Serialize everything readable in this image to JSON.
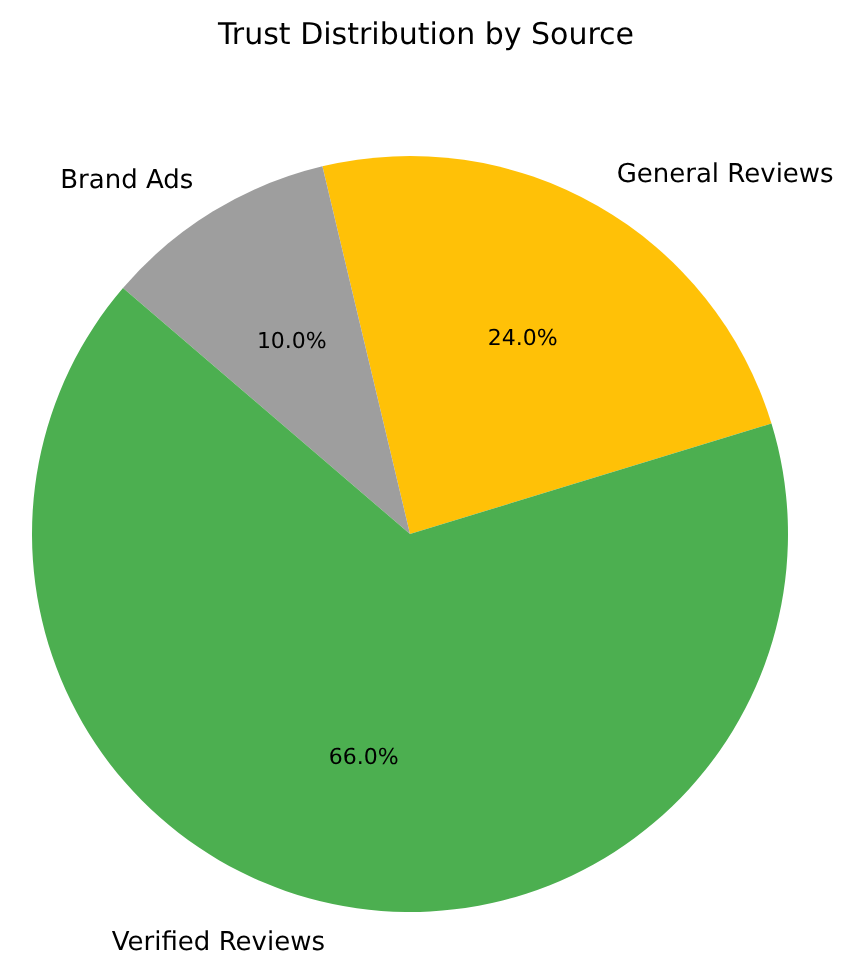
{
  "chart_data": {
    "type": "pie",
    "title": "Trust Distribution by Source",
    "categories": [
      "General Reviews",
      "Brand Ads",
      "Verified Reviews"
    ],
    "values": [
      24,
      10,
      66
    ],
    "colors": [
      "#ffc107",
      "#9e9e9e",
      "#4caf50"
    ],
    "value_labels": [
      "24.0%",
      "10.0%",
      "66.0%"
    ]
  }
}
